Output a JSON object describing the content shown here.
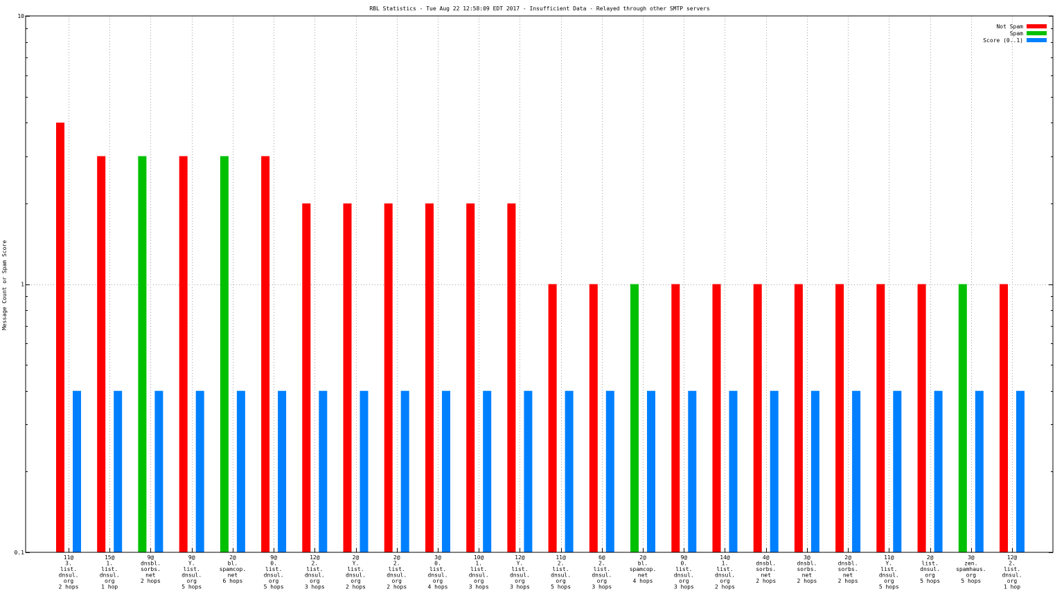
{
  "chart_data": {
    "type": "bar",
    "title": "RBL Statistics - Tue Aug 22 12:58:09 EDT 2017 - Insufficient Data - Relayed through other SMTP servers",
    "ylabel": "Message Count or Spam Score",
    "xlabel": "",
    "yscale": "log",
    "ylim": [
      0.1,
      10
    ],
    "yticks": [
      "10",
      "1",
      "0.1"
    ],
    "grid": true,
    "legend_position": "top-right",
    "categories": [
      [
        "11@",
        "3.",
        "list.",
        "dnsul.",
        "org",
        "2 hops"
      ],
      [
        "15@",
        "1.",
        "list.",
        "dnsul.",
        "org",
        "1 hop"
      ],
      [
        "9@",
        "dnsbl.",
        "sorbs.",
        "net",
        "2 hops"
      ],
      [
        "9@",
        "Y.",
        "list.",
        "dnsul.",
        "org",
        "5 hops"
      ],
      [
        "2@",
        "bl.",
        "spamcop.",
        "net",
        "6 hops"
      ],
      [
        "9@",
        "0.",
        "list.",
        "dnsul.",
        "org",
        "5 hops"
      ],
      [
        "12@",
        "2.",
        "list.",
        "dnsul.",
        "org",
        "3 hops"
      ],
      [
        "2@",
        "Y.",
        "list.",
        "dnsul.",
        "org",
        "2 hops"
      ],
      [
        "2@",
        "2.",
        "list.",
        "dnsul.",
        "org",
        "2 hops"
      ],
      [
        "3@",
        "0.",
        "list.",
        "dnsul.",
        "org",
        "4 hops"
      ],
      [
        "10@",
        "1.",
        "list.",
        "dnsul.",
        "org",
        "3 hops"
      ],
      [
        "12@",
        "Y.",
        "list.",
        "dnsul.",
        "org",
        "3 hops"
      ],
      [
        "11@",
        "2.",
        "list.",
        "dnsul.",
        "org",
        "5 hops"
      ],
      [
        "6@",
        "2.",
        "list.",
        "dnsul.",
        "org",
        "3 hops"
      ],
      [
        "2@",
        "bl.",
        "spamcop.",
        "net",
        "4 hops"
      ],
      [
        "9@",
        "0.",
        "list.",
        "dnsul.",
        "org",
        "3 hops"
      ],
      [
        "14@",
        "1.",
        "list.",
        "dnsul.",
        "org",
        "2 hops"
      ],
      [
        "4@",
        "dnsbl.",
        "sorbs.",
        "net",
        "2 hops"
      ],
      [
        "3@",
        "dnsbl.",
        "sorbs.",
        "net",
        "2 hops"
      ],
      [
        "2@",
        "dnsbl.",
        "sorbs.",
        "net",
        "2 hops"
      ],
      [
        "11@",
        "Y.",
        "list.",
        "dnsul.",
        "org",
        "5 hops"
      ],
      [
        "2@",
        "list.",
        "dnsul.",
        "org",
        "5 hops"
      ],
      [
        "3@",
        "zen.",
        "spamhaus.",
        "org",
        "5 hops"
      ],
      [
        "12@",
        "2.",
        "list.",
        "dnsul.",
        "org",
        "1 hop"
      ]
    ],
    "series": [
      {
        "name": "Not Spam",
        "color": "#ff0000",
        "values": [
          4,
          3,
          0,
          3,
          0,
          3,
          2,
          2,
          2,
          2,
          2,
          2,
          1,
          1,
          0,
          1,
          1,
          1,
          1,
          1,
          1,
          1,
          0,
          1
        ]
      },
      {
        "name": "Spam",
        "color": "#00c000",
        "values": [
          0,
          0,
          3,
          0,
          3,
          0,
          0,
          0,
          0,
          0,
          0,
          0,
          0,
          0,
          1,
          0,
          0,
          0,
          0,
          0,
          0,
          0,
          1,
          0
        ]
      },
      {
        "name": "Score (0..1)",
        "color": "#0080ff",
        "values": [
          0.4,
          0.4,
          0.4,
          0.4,
          0.4,
          0.4,
          0.4,
          0.4,
          0.4,
          0.4,
          0.4,
          0.4,
          0.4,
          0.4,
          0.4,
          0.4,
          0.4,
          0.4,
          0.4,
          0.4,
          0.4,
          0.4,
          0.4,
          0.4
        ]
      }
    ]
  }
}
